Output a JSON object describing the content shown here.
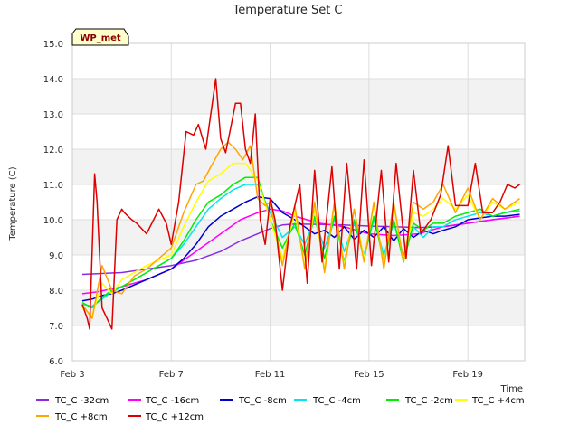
{
  "chart_data": {
    "type": "line",
    "title": "Temperature Set C",
    "xlabel": "Time",
    "ylabel": "Temperature (C)",
    "badge": "WP_met",
    "ylim": [
      6.0,
      15.0
    ],
    "xlim": [
      3,
      21.3
    ],
    "yticks": [
      "6.0",
      "7.0",
      "8.0",
      "9.0",
      "10.0",
      "11.0",
      "12.0",
      "13.0",
      "14.0",
      "15.0"
    ],
    "xticks": [
      {
        "label": "Feb 3",
        "day": 3
      },
      {
        "label": "Feb 7",
        "day": 7
      },
      {
        "label": "Feb 11",
        "day": 11
      },
      {
        "label": "Feb 15",
        "day": 15
      },
      {
        "label": "Feb 19",
        "day": 19
      }
    ],
    "grid": true,
    "legend_position": "bottom",
    "series": [
      {
        "name": "TC_C -32cm",
        "color": "#8a2be2",
        "x": [
          3.4,
          4.0,
          5.0,
          6.0,
          7.0,
          8.0,
          9.0,
          9.8,
          10.5,
          11.0,
          11.5,
          12.0,
          13.0,
          14.0,
          15.0,
          16.0,
          17.0,
          18.0,
          19.0,
          20.0,
          21.1
        ],
        "y": [
          8.45,
          8.47,
          8.5,
          8.6,
          8.7,
          8.85,
          9.1,
          9.4,
          9.6,
          9.75,
          9.85,
          9.88,
          9.87,
          9.85,
          9.82,
          9.8,
          9.78,
          9.8,
          9.9,
          10.0,
          10.1
        ]
      },
      {
        "name": "TC_C -16cm",
        "color": "#ff00ff",
        "x": [
          3.4,
          4.0,
          5.0,
          6.0,
          7.0,
          8.0,
          9.0,
          9.8,
          10.5,
          11.0,
          11.5,
          12.0,
          13.0,
          14.0,
          15.0,
          16.0,
          17.0,
          18.0,
          19.0,
          20.0,
          21.1
        ],
        "y": [
          7.9,
          7.95,
          8.1,
          8.3,
          8.6,
          9.1,
          9.6,
          10.0,
          10.2,
          10.3,
          10.25,
          10.1,
          9.9,
          9.8,
          9.6,
          9.55,
          9.6,
          9.8,
          9.9,
          10.0,
          10.1
        ]
      },
      {
        "name": "TC_C -8cm",
        "color": "#0000cd",
        "x": [
          3.4,
          3.8,
          4.2,
          4.6,
          5.0,
          6.0,
          7.0,
          7.5,
          8.0,
          8.5,
          9.0,
          9.5,
          10.0,
          10.5,
          11.0,
          11.5,
          12.0,
          12.4,
          12.8,
          13.2,
          13.6,
          14.0,
          14.4,
          14.8,
          15.2,
          15.6,
          16.0,
          16.4,
          16.8,
          17.2,
          17.6,
          18.0,
          18.5,
          19.0,
          19.5,
          20.0,
          20.5,
          21.1
        ],
        "y": [
          7.7,
          7.75,
          7.85,
          7.9,
          8.0,
          8.3,
          8.6,
          8.9,
          9.3,
          9.8,
          10.1,
          10.3,
          10.5,
          10.65,
          10.6,
          10.2,
          10.0,
          9.8,
          9.6,
          9.7,
          9.5,
          9.8,
          9.45,
          9.7,
          9.5,
          9.8,
          9.4,
          9.75,
          9.5,
          9.7,
          9.6,
          9.7,
          9.8,
          10.0,
          10.05,
          10.1,
          10.1,
          10.15
        ]
      },
      {
        "name": "TC_C -4cm",
        "color": "#00e5ee",
        "x": [
          3.4,
          3.8,
          4.2,
          4.6,
          5.0,
          6.0,
          7.0,
          7.5,
          8.0,
          8.5,
          9.0,
          9.5,
          10.0,
          10.5,
          11.0,
          11.5,
          12.0,
          12.4,
          12.8,
          13.2,
          13.6,
          14.0,
          14.4,
          14.8,
          15.2,
          15.6,
          16.0,
          16.4,
          16.8,
          17.2,
          17.6,
          18.0,
          18.5,
          19.0,
          19.5,
          20.0,
          20.5,
          21.1
        ],
        "y": [
          7.6,
          7.55,
          7.75,
          7.95,
          8.1,
          8.5,
          8.9,
          9.3,
          9.8,
          10.3,
          10.6,
          10.85,
          11.0,
          11.0,
          10.2,
          9.5,
          9.8,
          9.3,
          10.0,
          9.2,
          10.0,
          9.1,
          9.9,
          9.0,
          10.0,
          9.0,
          9.9,
          9.0,
          9.8,
          9.5,
          9.8,
          9.8,
          10.0,
          10.1,
          10.2,
          10.1,
          10.2,
          10.25
        ]
      },
      {
        "name": "TC_C -2cm",
        "color": "#00ee00",
        "x": [
          3.4,
          3.8,
          4.2,
          4.6,
          5.0,
          6.0,
          7.0,
          7.5,
          8.0,
          8.5,
          9.0,
          9.5,
          10.0,
          10.5,
          11.0,
          11.5,
          12.0,
          12.4,
          12.8,
          13.2,
          13.6,
          14.0,
          14.4,
          14.8,
          15.2,
          15.6,
          16.0,
          16.4,
          16.8,
          17.2,
          17.6,
          18.0,
          18.5,
          19.0,
          19.5,
          20.0,
          20.5,
          21.1
        ],
        "y": [
          7.65,
          7.5,
          7.8,
          8.0,
          8.1,
          8.5,
          8.9,
          9.4,
          10.0,
          10.5,
          10.7,
          11.0,
          11.2,
          11.2,
          10.0,
          9.2,
          9.9,
          9.0,
          10.1,
          8.9,
          10.1,
          8.8,
          10.0,
          8.9,
          10.1,
          8.8,
          10.0,
          8.8,
          9.9,
          9.7,
          9.9,
          9.9,
          10.1,
          10.2,
          10.3,
          10.1,
          10.2,
          10.3
        ]
      },
      {
        "name": "TC_C +4cm",
        "color": "#ffff00",
        "x": [
          3.4,
          3.8,
          4.2,
          4.6,
          5.0,
          6.0,
          7.0,
          7.5,
          8.0,
          8.5,
          9.0,
          9.5,
          10.0,
          10.5,
          11.0,
          11.5,
          12.0,
          12.4,
          12.8,
          13.2,
          13.6,
          14.0,
          14.4,
          14.8,
          15.2,
          15.6,
          16.0,
          16.4,
          16.8,
          17.2,
          17.6,
          18.0,
          18.5,
          19.0,
          19.5,
          20.0,
          20.5,
          21.1
        ],
        "y": [
          7.5,
          7.3,
          8.2,
          7.9,
          8.3,
          8.7,
          9.0,
          9.8,
          10.5,
          11.1,
          11.3,
          11.6,
          11.6,
          11.1,
          10.0,
          8.9,
          10.2,
          8.7,
          10.3,
          8.6,
          10.4,
          8.7,
          10.3,
          8.9,
          10.4,
          8.7,
          10.4,
          8.8,
          10.2,
          10.1,
          10.3,
          10.6,
          10.3,
          10.7,
          10.0,
          10.5,
          10.3,
          10.5
        ]
      },
      {
        "name": "TC_C +8cm",
        "color": "#ffa500",
        "x": [
          3.4,
          3.8,
          4.2,
          4.6,
          5.0,
          5.5,
          6.0,
          6.5,
          7.0,
          7.5,
          8.0,
          8.3,
          8.6,
          9.0,
          9.3,
          9.6,
          9.9,
          10.2,
          10.5,
          10.8,
          11.0,
          11.5,
          12.0,
          12.4,
          12.8,
          13.2,
          13.6,
          14.0,
          14.4,
          14.8,
          15.2,
          15.6,
          16.0,
          16.4,
          16.8,
          17.2,
          17.6,
          18.0,
          18.5,
          19.0,
          19.5,
          20.0,
          20.5,
          21.1
        ],
        "y": [
          7.6,
          7.2,
          8.7,
          8.0,
          7.9,
          8.4,
          8.6,
          8.9,
          9.2,
          10.2,
          11.0,
          11.1,
          11.5,
          12.0,
          12.2,
          12.0,
          11.7,
          12.1,
          10.6,
          10.4,
          10.5,
          8.7,
          10.4,
          8.6,
          10.5,
          8.5,
          10.5,
          8.6,
          10.3,
          8.8,
          10.5,
          8.6,
          10.5,
          8.8,
          10.5,
          10.3,
          10.5,
          11.0,
          10.2,
          10.9,
          10.0,
          10.6,
          10.3,
          10.6
        ]
      },
      {
        "name": "TC_C +12cm",
        "color": "#dd0000",
        "x": [
          3.4,
          3.6,
          3.7,
          3.9,
          4.0,
          4.2,
          4.4,
          4.6,
          4.8,
          5.0,
          5.1,
          5.4,
          5.6,
          6.0,
          6.5,
          6.8,
          7.0,
          7.1,
          7.3,
          7.6,
          7.9,
          8.1,
          8.4,
          8.6,
          8.8,
          9.0,
          9.2,
          9.4,
          9.6,
          9.8,
          10.0,
          10.2,
          10.4,
          10.6,
          10.8,
          11.0,
          11.2,
          11.5,
          11.8,
          12.2,
          12.5,
          12.8,
          13.1,
          13.5,
          13.8,
          14.1,
          14.5,
          14.8,
          15.1,
          15.5,
          15.8,
          16.1,
          16.5,
          16.8,
          17.1,
          17.5,
          17.9,
          18.2,
          18.5,
          19.0,
          19.3,
          19.6,
          20.0,
          20.3,
          20.6,
          20.9,
          21.1
        ],
        "y": [
          7.6,
          7.2,
          6.9,
          11.3,
          10.5,
          7.5,
          7.2,
          6.9,
          10.0,
          10.3,
          10.2,
          10.0,
          9.9,
          9.6,
          10.3,
          9.9,
          9.3,
          9.7,
          10.5,
          12.5,
          12.4,
          12.7,
          12.0,
          13.0,
          14.0,
          12.3,
          11.9,
          12.6,
          13.3,
          13.3,
          12.0,
          11.6,
          13.0,
          10.0,
          9.3,
          10.6,
          10.0,
          8.0,
          9.8,
          11.0,
          8.2,
          11.4,
          8.8,
          11.5,
          8.6,
          11.6,
          8.6,
          11.7,
          8.7,
          11.4,
          8.8,
          11.6,
          8.9,
          11.4,
          9.6,
          10.0,
          10.7,
          12.1,
          10.4,
          10.4,
          11.6,
          10.2,
          10.2,
          10.5,
          11.0,
          10.9,
          11.0
        ]
      }
    ]
  }
}
